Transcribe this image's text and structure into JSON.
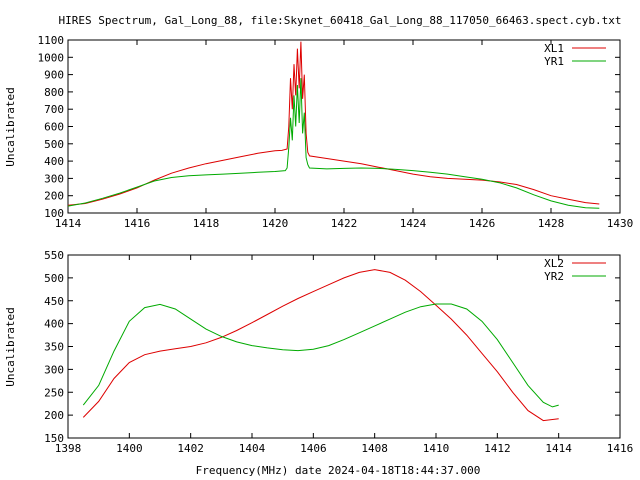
{
  "title": "HIRES Spectrum, Gal_Long_88, file:Skynet_60418_Gal_Long_88_117050_66463.spect.cyb.txt",
  "footer_xlabel": "Frequency(MHz) date 2024-04-18T18:44:37.000",
  "colors": {
    "red": "#dd0000",
    "green": "#00aa00",
    "axis": "#000000"
  },
  "chart_data": [
    {
      "type": "line",
      "ylabel": "Uncalibrated",
      "xlim": [
        1414,
        1430
      ],
      "ylim": [
        100,
        1100
      ],
      "x_ticks": [
        "1414",
        "1416",
        "1418",
        "1420",
        "1422",
        "1424",
        "1426",
        "1428",
        "1430"
      ],
      "y_ticks": [
        "100",
        "200",
        "300",
        "400",
        "500",
        "600",
        "700",
        "800",
        "900",
        "1000",
        "1100"
      ],
      "legend_position": "top-right",
      "grid": false,
      "series": [
        {
          "name": "XL1",
          "color": "#dd0000",
          "points": [
            [
              1414.0,
              145
            ],
            [
              1414.5,
              155
            ],
            [
              1415.0,
              180
            ],
            [
              1415.5,
              210
            ],
            [
              1416.0,
              245
            ],
            [
              1416.5,
              290
            ],
            [
              1417.0,
              330
            ],
            [
              1417.5,
              360
            ],
            [
              1418.0,
              385
            ],
            [
              1418.5,
              405
            ],
            [
              1419.0,
              425
            ],
            [
              1419.5,
              445
            ],
            [
              1420.0,
              460
            ],
            [
              1420.2,
              462
            ],
            [
              1420.35,
              470
            ],
            [
              1420.4,
              600
            ],
            [
              1420.45,
              880
            ],
            [
              1420.5,
              700
            ],
            [
              1420.55,
              960
            ],
            [
              1420.6,
              780
            ],
            [
              1420.65,
              1050
            ],
            [
              1420.7,
              820
            ],
            [
              1420.75,
              1090
            ],
            [
              1420.8,
              760
            ],
            [
              1420.85,
              900
            ],
            [
              1420.9,
              560
            ],
            [
              1420.95,
              450
            ],
            [
              1421.0,
              430
            ],
            [
              1421.5,
              415
            ],
            [
              1422.0,
              400
            ],
            [
              1422.5,
              385
            ],
            [
              1423.0,
              365
            ],
            [
              1423.5,
              345
            ],
            [
              1424.0,
              325
            ],
            [
              1424.5,
              310
            ],
            [
              1425.0,
              300
            ],
            [
              1425.5,
              295
            ],
            [
              1426.0,
              290
            ],
            [
              1426.5,
              280
            ],
            [
              1427.0,
              265
            ],
            [
              1427.5,
              235
            ],
            [
              1428.0,
              200
            ],
            [
              1428.5,
              180
            ],
            [
              1429.0,
              160
            ],
            [
              1429.4,
              152
            ]
          ]
        },
        {
          "name": "YR1",
          "color": "#00aa00",
          "points": [
            [
              1414.0,
              140
            ],
            [
              1414.5,
              158
            ],
            [
              1415.0,
              185
            ],
            [
              1415.5,
              215
            ],
            [
              1416.0,
              250
            ],
            [
              1416.5,
              285
            ],
            [
              1417.0,
              305
            ],
            [
              1417.5,
              315
            ],
            [
              1418.0,
              320
            ],
            [
              1418.5,
              325
            ],
            [
              1419.0,
              330
            ],
            [
              1419.5,
              335
            ],
            [
              1420.0,
              340
            ],
            [
              1420.3,
              345
            ],
            [
              1420.35,
              360
            ],
            [
              1420.4,
              480
            ],
            [
              1420.45,
              650
            ],
            [
              1420.5,
              520
            ],
            [
              1420.55,
              780
            ],
            [
              1420.6,
              600
            ],
            [
              1420.65,
              840
            ],
            [
              1420.7,
              620
            ],
            [
              1420.75,
              880
            ],
            [
              1420.8,
              560
            ],
            [
              1420.85,
              680
            ],
            [
              1420.9,
              420
            ],
            [
              1420.95,
              380
            ],
            [
              1421.0,
              360
            ],
            [
              1421.5,
              355
            ],
            [
              1422.0,
              358
            ],
            [
              1422.5,
              360
            ],
            [
              1423.0,
              358
            ],
            [
              1423.5,
              352
            ],
            [
              1424.0,
              345
            ],
            [
              1424.5,
              335
            ],
            [
              1425.0,
              325
            ],
            [
              1425.5,
              310
            ],
            [
              1426.0,
              295
            ],
            [
              1426.5,
              275
            ],
            [
              1427.0,
              245
            ],
            [
              1427.5,
              205
            ],
            [
              1428.0,
              170
            ],
            [
              1428.5,
              145
            ],
            [
              1429.0,
              130
            ],
            [
              1429.4,
              128
            ]
          ]
        }
      ]
    },
    {
      "type": "line",
      "ylabel": "Uncalibrated",
      "xlim": [
        1398,
        1416
      ],
      "ylim": [
        150,
        550
      ],
      "x_ticks": [
        "1398",
        "1400",
        "1402",
        "1404",
        "1406",
        "1408",
        "1410",
        "1412",
        "1414",
        "1416"
      ],
      "y_ticks": [
        "150",
        "200",
        "250",
        "300",
        "350",
        "400",
        "450",
        "500",
        "550"
      ],
      "legend_position": "top-right",
      "grid": false,
      "series": [
        {
          "name": "XL2",
          "color": "#dd0000",
          "points": [
            [
              1398.5,
              195
            ],
            [
              1399.0,
              230
            ],
            [
              1399.5,
              280
            ],
            [
              1400.0,
              315
            ],
            [
              1400.5,
              332
            ],
            [
              1401.0,
              340
            ],
            [
              1401.5,
              345
            ],
            [
              1402.0,
              350
            ],
            [
              1402.5,
              358
            ],
            [
              1403.0,
              370
            ],
            [
              1403.5,
              385
            ],
            [
              1404.0,
              402
            ],
            [
              1404.5,
              420
            ],
            [
              1405.0,
              438
            ],
            [
              1405.5,
              455
            ],
            [
              1406.0,
              470
            ],
            [
              1406.5,
              485
            ],
            [
              1407.0,
              500
            ],
            [
              1407.5,
              512
            ],
            [
              1408.0,
              518
            ],
            [
              1408.5,
              512
            ],
            [
              1409.0,
              495
            ],
            [
              1409.5,
              470
            ],
            [
              1410.0,
              440
            ],
            [
              1410.5,
              410
            ],
            [
              1411.0,
              375
            ],
            [
              1411.5,
              335
            ],
            [
              1412.0,
              295
            ],
            [
              1412.5,
              250
            ],
            [
              1413.0,
              210
            ],
            [
              1413.5,
              188
            ],
            [
              1414.0,
              192
            ]
          ]
        },
        {
          "name": "YR2",
          "color": "#00aa00",
          "points": [
            [
              1398.5,
              222
            ],
            [
              1399.0,
              265
            ],
            [
              1399.5,
              340
            ],
            [
              1400.0,
              405
            ],
            [
              1400.5,
              435
            ],
            [
              1401.0,
              442
            ],
            [
              1401.5,
              432
            ],
            [
              1402.0,
              410
            ],
            [
              1402.5,
              388
            ],
            [
              1403.0,
              372
            ],
            [
              1403.5,
              360
            ],
            [
              1404.0,
              352
            ],
            [
              1404.5,
              347
            ],
            [
              1405.0,
              343
            ],
            [
              1405.5,
              341
            ],
            [
              1406.0,
              344
            ],
            [
              1406.5,
              352
            ],
            [
              1407.0,
              365
            ],
            [
              1407.5,
              380
            ],
            [
              1408.0,
              395
            ],
            [
              1408.5,
              410
            ],
            [
              1409.0,
              425
            ],
            [
              1409.5,
              437
            ],
            [
              1410.0,
              443
            ],
            [
              1410.5,
              443
            ],
            [
              1411.0,
              432
            ],
            [
              1411.5,
              405
            ],
            [
              1412.0,
              365
            ],
            [
              1412.5,
              315
            ],
            [
              1413.0,
              265
            ],
            [
              1413.5,
              228
            ],
            [
              1413.8,
              218
            ],
            [
              1414.0,
              222
            ]
          ]
        }
      ]
    }
  ]
}
